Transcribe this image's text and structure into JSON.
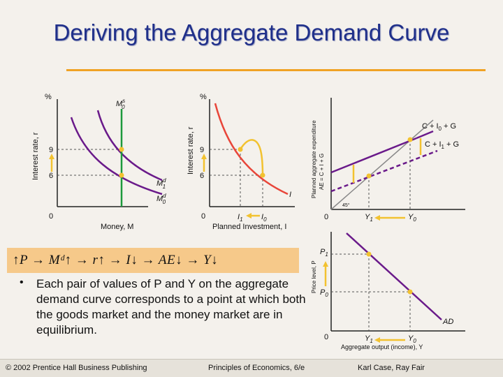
{
  "slide": {
    "title": "Deriving the Aggregate Demand Curve"
  },
  "money_market": {
    "y_axis_unit": "%",
    "y_axis_label": "Interest rate, r",
    "x_axis_label": "Money, M",
    "origin": "0",
    "tick_9": "9",
    "tick_6": "6",
    "supply_label": "M",
    "supply_sup": "s",
    "supply_sub": "0",
    "demand1_label": "M",
    "demand1_sup": "d",
    "demand1_sub": "1",
    "demand0_label": "M",
    "demand0_sup": "d",
    "demand0_sub": "0"
  },
  "investment_panel": {
    "y_axis_unit": "%",
    "y_axis_label": "Interest rate, r",
    "x_axis_label": "Planned Investment, I",
    "origin": "0",
    "tick_9": "9",
    "tick_6": "6",
    "curve_label": "I",
    "x_tick_1": "I",
    "x_tick_1_sub": "1",
    "x_tick_0": "I",
    "x_tick_0_sub": "0"
  },
  "expenditure_panel": {
    "y_axis_label_1": "Planned aggregate expenditure",
    "y_axis_label_2": "AE = C + I + G",
    "origin": "0",
    "line0_label": "C + I",
    "line0_sub": "0",
    "line0_tail": " + G",
    "line1_label": "C + I",
    "line1_sub": "1",
    "line1_tail": " + G",
    "angle_label": "45°",
    "x_tick_1": "Y",
    "x_tick_1_sub": "1",
    "x_tick_0": "Y",
    "x_tick_0_sub": "0"
  },
  "ad_panel": {
    "y_axis_label": "Price level, P",
    "x_axis_label": "Aggregate output (income), Y",
    "origin": "0",
    "p1": "P",
    "p1_sub": "1",
    "p0": "P",
    "p0_sub": "0",
    "curve_label": "AD",
    "x_tick_1": "Y",
    "x_tick_1_sub": "1",
    "x_tick_0": "Y",
    "x_tick_0_sub": "0"
  },
  "chain": {
    "text": "↑P → Mᵈ↑ → r↑ → I↓ → AE↓ → Y↓"
  },
  "bullet": {
    "text": "Each pair of values of P and Y on the aggregate demand curve corresponds to a point at which both the goods market and the money market are in equilibrium."
  },
  "footer": {
    "copyright": "© 2002 Prentice Hall Business Publishing",
    "book": "Principles of Economics, 6/e",
    "authors": "Karl Case, Ray Fair"
  },
  "colors": {
    "title": "#1f2f8a",
    "rule": "#f0a224",
    "purple": "#6a1a8a",
    "red": "#e8463a",
    "green": "#1d9a3c",
    "yellow": "#f2c230",
    "chain_bg": "#f6c98a"
  }
}
